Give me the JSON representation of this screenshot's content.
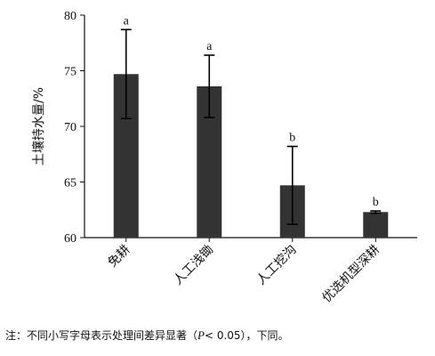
{
  "chart_data": {
    "type": "bar",
    "categories": [
      "免耕",
      "人工浅锄",
      "人工挖沟",
      "优选机型深耕"
    ],
    "values": [
      74.7,
      73.6,
      64.7,
      62.3
    ],
    "errors": [
      4.0,
      2.8,
      3.5,
      0.1
    ],
    "significance_letters": [
      "a",
      "a",
      "b",
      "b"
    ],
    "ylabel": "土壤持水量/%",
    "ylim": [
      60,
      80
    ],
    "yticks": [
      "60",
      "65",
      "70",
      "75",
      "80"
    ],
    "bar_color": "#333333",
    "grid": false
  },
  "note": {
    "prefix": "注：不同小写字母表示处理间差异显著（",
    "p": "P",
    "suffix": "< 0.05），下同。"
  }
}
